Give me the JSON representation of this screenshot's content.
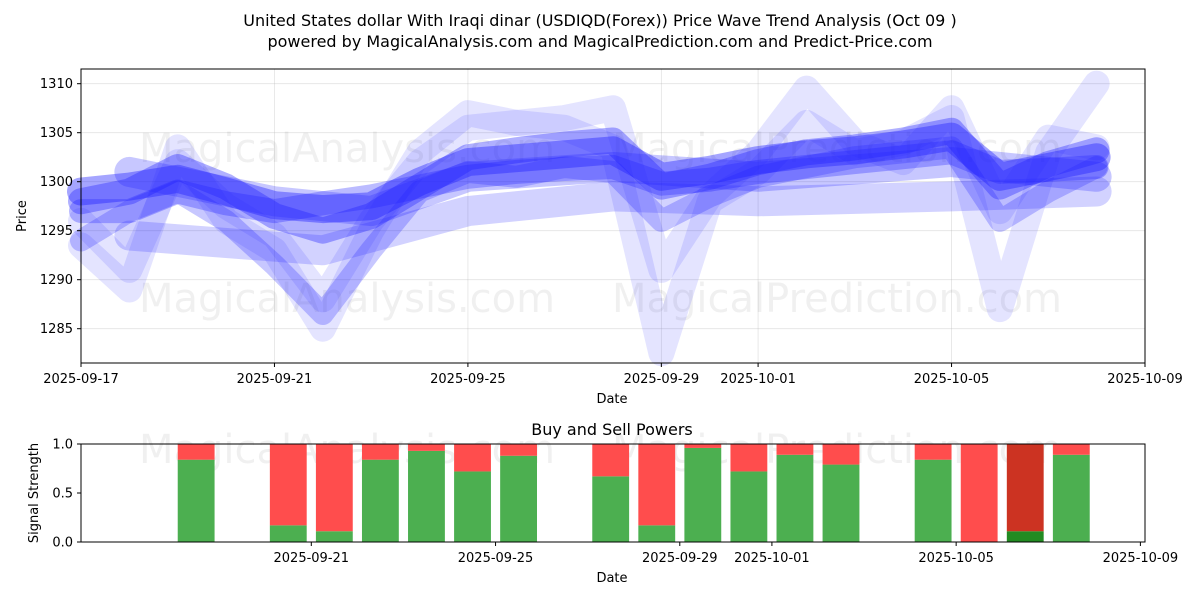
{
  "title_line1": "United States dollar With Iraqi dinar (USDIQD(Forex)) Price Wave Trend Analysis (Oct 09 )",
  "title_line2": "powered by MagicalAnalysis.com and MagicalPrediction.com and Predict-Price.com",
  "watermarks": [
    "MagicalAnalysis.com",
    "MagicalPrediction.com"
  ],
  "colors": {
    "wave": "#1e1eff",
    "buy": "#4caf50",
    "sell": "#ff4d4d",
    "sell_dark": "#cc3322",
    "buy_dark": "#228b22"
  },
  "chart_data": [
    {
      "type": "line",
      "title": "",
      "xlabel": "Date",
      "ylabel": "Price",
      "x_range": [
        "2025-09-17",
        "2025-10-09"
      ],
      "ylim": [
        1281.5,
        1311.5
      ],
      "x_ticks": [
        "2025-09-17",
        "2025-09-21",
        "2025-09-25",
        "2025-09-29",
        "2025-10-01",
        "2025-10-05",
        "2025-10-09"
      ],
      "y_ticks": [
        1285,
        1290,
        1295,
        1300,
        1305,
        1310
      ],
      "grid": true,
      "series": [
        {
          "x": [
            "2025-09-17",
            "2025-09-18",
            "2025-09-19",
            "2025-09-20",
            "2025-09-21",
            "2025-09-22",
            "2025-09-23",
            "2025-09-24",
            "2025-09-25",
            "2025-09-26",
            "2025-09-27",
            "2025-09-28",
            "2025-09-29",
            "2025-09-30",
            "2025-10-01",
            "2025-10-02",
            "2025-10-03",
            "2025-10-04",
            "2025-10-05",
            "2025-10-06",
            "2025-10-07",
            "2025-10-08"
          ],
          "y": [
            1299,
            1299.5,
            1300.3,
            1299,
            1297.6,
            1297.2,
            1297.5,
            1300,
            1302,
            1302.4,
            1302.8,
            1303.2,
            1300.5,
            1301.2,
            1302.2,
            1302.8,
            1303.2,
            1303.8,
            1304.6,
            1300.5,
            1301.5,
            1302.5
          ],
          "opacity": 0.4,
          "width": 28
        },
        {
          "x": [
            "2025-09-17",
            "2025-09-18",
            "2025-09-19",
            "2025-09-20",
            "2025-09-21",
            "2025-09-22",
            "2025-09-23",
            "2025-09-24",
            "2025-09-25",
            "2025-09-26",
            "2025-09-27",
            "2025-09-28",
            "2025-09-29",
            "2025-09-30",
            "2025-10-01",
            "2025-10-02",
            "2025-10-03",
            "2025-10-04",
            "2025-10-05",
            "2025-10-06",
            "2025-10-07",
            "2025-10-08"
          ],
          "y": [
            1298,
            1299,
            1301.5,
            1299.5,
            1296.5,
            1295,
            1296.5,
            1299.5,
            1302.5,
            1303.2,
            1303.8,
            1304.2,
            1299.5,
            1300.5,
            1302,
            1303,
            1303.5,
            1304.2,
            1305.2,
            1299.5,
            1301.8,
            1303.2
          ],
          "opacity": 0.35,
          "width": 26
        },
        {
          "x": [
            "2025-09-17",
            "2025-09-18",
            "2025-09-19",
            "2025-09-20",
            "2025-09-21",
            "2025-09-22",
            "2025-09-23",
            "2025-09-24",
            "2025-09-25",
            "2025-09-26",
            "2025-09-27",
            "2025-09-28",
            "2025-09-29",
            "2025-09-30",
            "2025-10-01",
            "2025-10-02",
            "2025-10-03",
            "2025-10-04",
            "2025-10-05",
            "2025-10-06",
            "2025-10-07",
            "2025-10-08"
          ],
          "y": [
            1297,
            1297,
            1299,
            1297.8,
            1297,
            1297.8,
            1298.5,
            1299.5,
            1300.5,
            1301,
            1301.3,
            1301.5,
            1299.8,
            1300.2,
            1301,
            1301.5,
            1302,
            1302.5,
            1303,
            1301,
            1301.2,
            1301.5
          ],
          "opacity": 0.3,
          "width": 24
        },
        {
          "x": [
            "2025-09-17",
            "2025-09-18",
            "2025-09-19",
            "2025-09-20",
            "2025-09-21",
            "2025-09-22",
            "2025-09-23",
            "2025-09-24",
            "2025-09-25",
            "2025-09-26",
            "2025-09-27",
            "2025-09-28",
            "2025-09-29",
            "2025-09-30",
            "2025-10-01",
            "2025-10-02",
            "2025-10-03",
            "2025-10-04",
            "2025-10-05",
            "2025-10-06",
            "2025-10-07",
            "2025-10-08"
          ],
          "y": [
            1294,
            1297,
            1299,
            1296,
            1291.5,
            1286.5,
            1293,
            1299,
            1301,
            1300.5,
            1301.5,
            1301,
            1296,
            1298.5,
            1300.5,
            1301.5,
            1302.5,
            1303,
            1303.5,
            1296,
            1299,
            1301.5
          ],
          "opacity": 0.25,
          "width": 22
        },
        {
          "x": [
            "2025-09-17",
            "2025-09-18",
            "2025-09-19",
            "2025-09-20",
            "2025-09-21",
            "2025-09-22",
            "2025-09-23",
            "2025-09-24",
            "2025-09-25",
            "2025-09-26",
            "2025-09-27",
            "2025-09-28",
            "2025-09-29",
            "2025-09-30",
            "2025-10-01",
            "2025-10-02",
            "2025-10-03",
            "2025-10-04",
            "2025-10-05",
            "2025-10-06",
            "2025-10-07",
            "2025-10-08"
          ],
          "y": [
            1293.5,
            1289,
            1303.5,
            1296,
            1293,
            1285,
            1295,
            1303,
            1307,
            1306,
            1305.5,
            1303.5,
            1282.5,
            1298,
            1301,
            1306,
            1303,
            1304,
            1306.5,
            1287,
            1303,
            1310
          ],
          "opacity": 0.12,
          "width": 26
        },
        {
          "x": [
            "2025-09-17",
            "2025-09-18",
            "2025-09-19",
            "2025-09-20",
            "2025-09-21",
            "2025-09-22",
            "2025-09-23",
            "2025-09-24",
            "2025-09-25",
            "2025-09-26",
            "2025-09-27",
            "2025-09-28",
            "2025-09-29",
            "2025-09-30",
            "2025-10-01",
            "2025-10-02",
            "2025-10-03",
            "2025-10-04",
            "2025-10-05",
            "2025-10-06",
            "2025-10-07",
            "2025-10-08"
          ],
          "y": [
            1296,
            1291,
            1302,
            1297.5,
            1294.5,
            1288,
            1296,
            1302,
            1305.5,
            1306,
            1306.5,
            1307.5,
            1291,
            1298.5,
            1303,
            1309.5,
            1304,
            1302,
            1307.5,
            1297,
            1304.5,
            1303.5
          ],
          "opacity": 0.12,
          "width": 26
        },
        {
          "x": [
            "2025-09-18",
            "2025-09-21",
            "2025-09-23",
            "2025-09-25",
            "2025-09-28",
            "2025-10-01",
            "2025-10-05",
            "2025-10-08"
          ],
          "y": [
            1301,
            1298,
            1297,
            1300.5,
            1301.5,
            1300.5,
            1302,
            1300.5
          ],
          "opacity": 0.25,
          "width": 30
        },
        {
          "x": [
            "2025-09-18",
            "2025-09-22",
            "2025-09-25",
            "2025-09-28",
            "2025-10-01",
            "2025-10-05",
            "2025-10-08"
          ],
          "y": [
            1294.5,
            1293,
            1297,
            1298.5,
            1298,
            1298.5,
            1299
          ],
          "opacity": 0.2,
          "width": 30
        }
      ]
    },
    {
      "type": "bar",
      "title": "Buy and Sell Powers",
      "xlabel": "Date",
      "ylabel": "Signal Strength",
      "ylim": [
        0,
        1
      ],
      "y_ticks": [
        "0.0",
        "0.5",
        "1.0"
      ],
      "x_ticks": [
        "2025-09-21",
        "2025-09-25",
        "2025-09-29",
        "2025-10-01",
        "2025-10-05",
        "2025-10-09"
      ],
      "bars": [
        {
          "date": "2025-09-18",
          "buy": 0.84,
          "sell": 0.16
        },
        {
          "date": "2025-09-20",
          "buy": 0.17,
          "sell": 0.83
        },
        {
          "date": "2025-09-21",
          "buy": 0.11,
          "sell": 0.89
        },
        {
          "date": "2025-09-22",
          "buy": 0.84,
          "sell": 0.16
        },
        {
          "date": "2025-09-23",
          "buy": 0.93,
          "sell": 0.07
        },
        {
          "date": "2025-09-24",
          "buy": 0.72,
          "sell": 0.28
        },
        {
          "date": "2025-09-25",
          "buy": 0.88,
          "sell": 0.12
        },
        {
          "date": "2025-09-27",
          "buy": 0.67,
          "sell": 0.33
        },
        {
          "date": "2025-09-28",
          "buy": 0.17,
          "sell": 0.83
        },
        {
          "date": "2025-09-29",
          "buy": 0.96,
          "sell": 0.04
        },
        {
          "date": "2025-09-30",
          "buy": 0.72,
          "sell": 0.28
        },
        {
          "date": "2025-10-01",
          "buy": 0.89,
          "sell": 0.11
        },
        {
          "date": "2025-10-02",
          "buy": 0.79,
          "sell": 0.21
        },
        {
          "date": "2025-10-04",
          "buy": 0.84,
          "sell": 0.16
        },
        {
          "date": "2025-10-05",
          "buy": 0.0,
          "sell": 1.0
        },
        {
          "date": "2025-10-06",
          "buy": 0.11,
          "sell": 0.89,
          "dark": true
        },
        {
          "date": "2025-10-07",
          "buy": 0.89,
          "sell": 0.11
        }
      ]
    }
  ]
}
